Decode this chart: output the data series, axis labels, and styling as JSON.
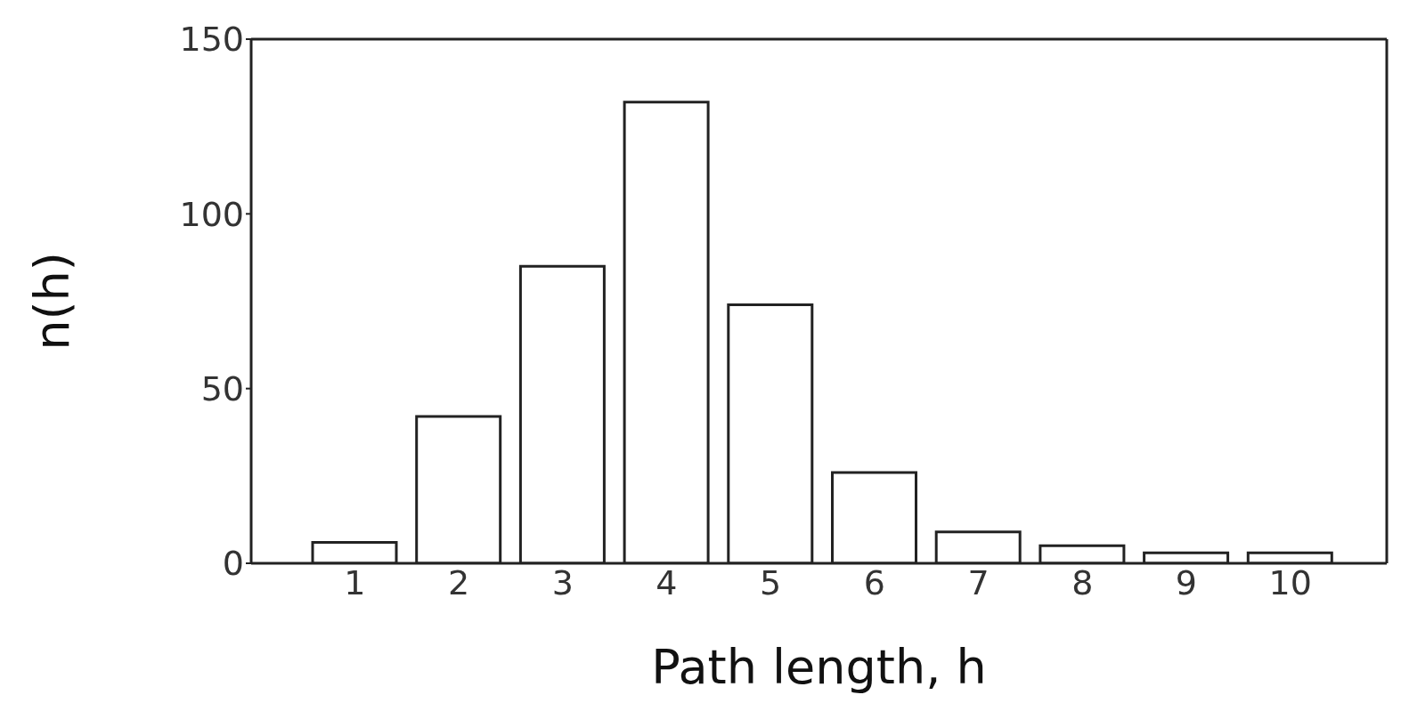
{
  "chart_data": {
    "type": "bar",
    "xlabel": "Path length, h",
    "ylabel": "n(h)",
    "categories": [
      "1",
      "2",
      "3",
      "4",
      "5",
      "6",
      "7",
      "8",
      "9",
      "10"
    ],
    "values": [
      6,
      42,
      85,
      132,
      74,
      26,
      9,
      5,
      3,
      3
    ],
    "color": "#ffffff",
    "ylim": [
      0,
      150
    ],
    "yticks": [
      0,
      50,
      100,
      150
    ],
    "grid": false,
    "legend": false
  }
}
